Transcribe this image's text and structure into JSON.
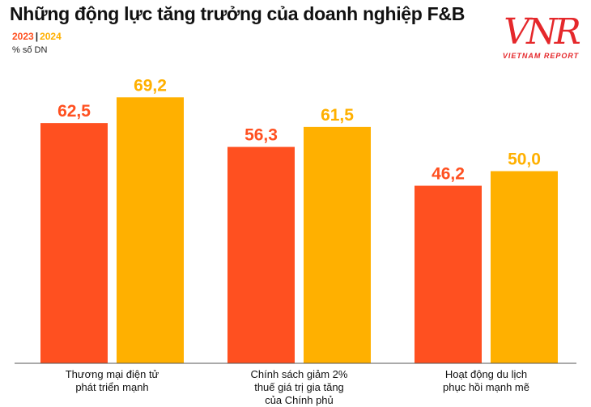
{
  "colors": {
    "c2023": "#ff5020",
    "c2024": "#ffb000"
  },
  "header": {
    "title": "Những động lực tăng trưởng của doanh nghiệp F&B",
    "legend_2023": "2023",
    "legend_sep": "|",
    "legend_2024": "2024",
    "unit": "% số DN"
  },
  "logo": {
    "mark": "VNR",
    "tagline": "VIETNAM REPORT"
  },
  "chart_data": {
    "type": "bar",
    "title": "Những động lực tăng trưởng của doanh nghiệp F&B",
    "ylabel": "% số DN",
    "xlabel": "",
    "legend_position": "top-left",
    "grid": false,
    "ylim": [
      0,
      80
    ],
    "categories": [
      [
        "Thương mại điện tử",
        "phát triển mạnh"
      ],
      [
        "Chính sách giảm 2%",
        "thuế giá trị gia tăng",
        "của Chính phủ"
      ],
      [
        "Hoạt động du lịch",
        "phục hồi mạnh mẽ"
      ]
    ],
    "series": [
      {
        "name": "2023",
        "color": "#ff5020",
        "values": [
          62.5,
          56.3,
          46.2
        ],
        "labels": [
          "62,5",
          "56,3",
          "46,2"
        ]
      },
      {
        "name": "2024",
        "color": "#ffb000",
        "values": [
          69.2,
          61.5,
          50.0
        ],
        "labels": [
          "69,2",
          "61,5",
          "50,0"
        ]
      }
    ]
  }
}
